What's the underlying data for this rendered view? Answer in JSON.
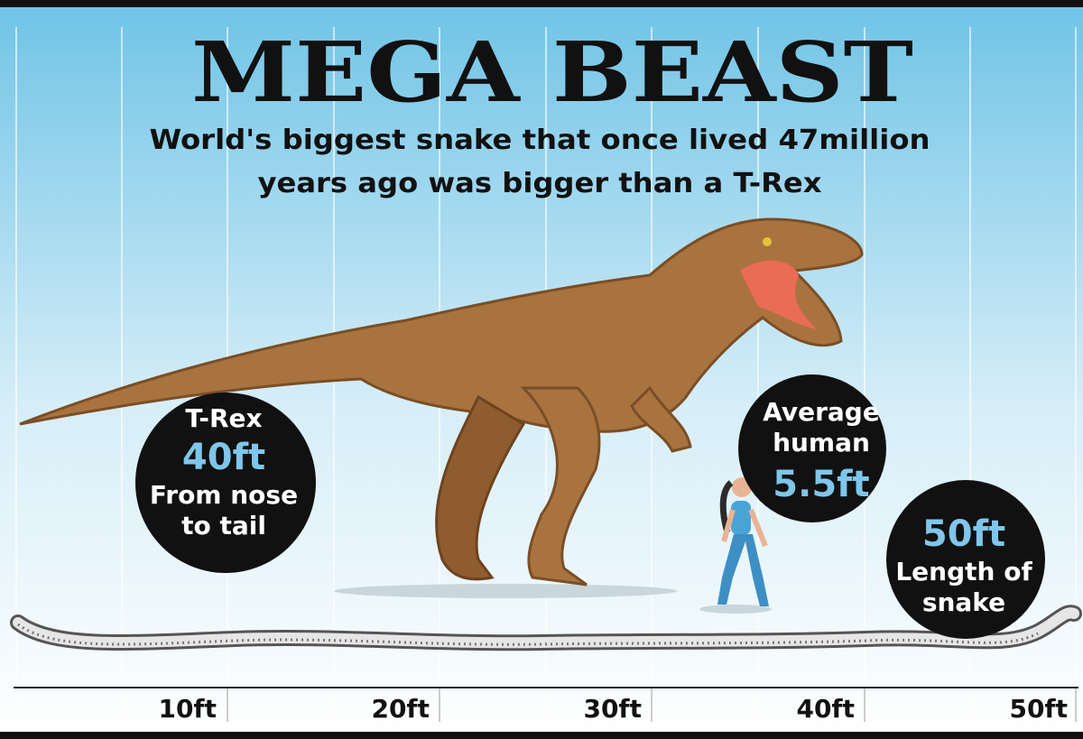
{
  "header": {
    "title": "MEGA BEAST",
    "subtitle_lines": [
      "World's biggest snake that once lived 47million",
      "years ago was bigger than a T-Rex"
    ]
  },
  "scale": {
    "labels": [
      "10ft",
      "20ft",
      "30ft",
      "40ft",
      "50ft"
    ]
  },
  "callouts": [
    {
      "lines": [
        "T-Rex"
      ],
      "value": "40ft",
      "note_lines": [
        "From nose",
        "to tail"
      ]
    },
    {
      "lines": [
        "Average",
        "human"
      ],
      "value": "5.5ft"
    },
    {
      "value": "50ft",
      "note_lines": [
        "Length of",
        "snake"
      ]
    }
  ]
}
